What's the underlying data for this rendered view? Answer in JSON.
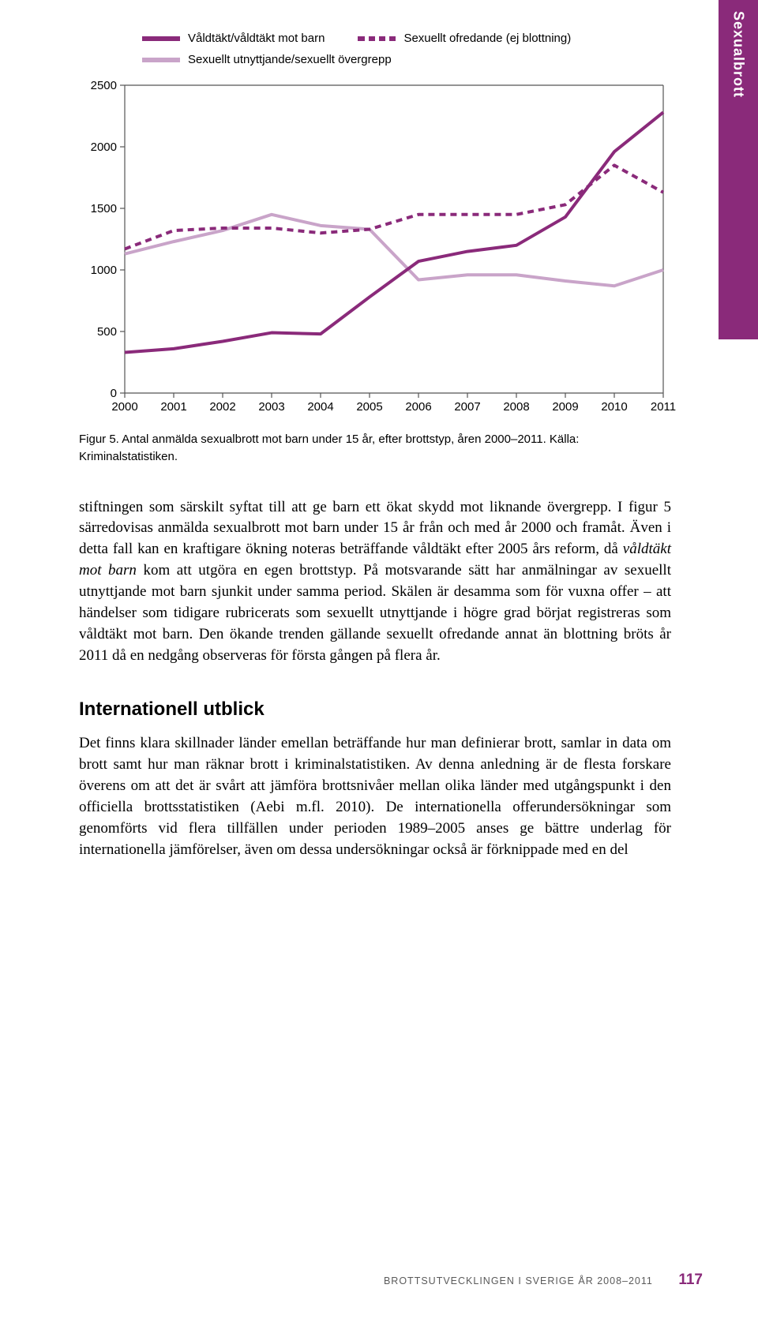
{
  "side_tab": "Sexualbrott",
  "legend": {
    "series1": "Våldtäkt/våldtäkt mot barn",
    "series2": "Sexuellt ofredande (ej blottning)",
    "series3": "Sexuellt utnyttjande/sexuellt övergrepp"
  },
  "chart": {
    "type": "line",
    "years": [
      "2000",
      "2001",
      "2002",
      "2003",
      "2004",
      "2005",
      "2006",
      "2007",
      "2008",
      "2009",
      "2010",
      "2011"
    ],
    "ylim": [
      0,
      2500
    ],
    "ytick_step": 500,
    "yticks": [
      "0",
      "500",
      "1000",
      "1500",
      "2000",
      "2500"
    ],
    "series": {
      "valdtakt": {
        "color": "#8a2a7a",
        "width": 4,
        "dash": "none",
        "values": [
          330,
          360,
          420,
          490,
          480,
          780,
          1070,
          1150,
          1200,
          1430,
          1960,
          2280
        ]
      },
      "ofredande": {
        "color": "#8a2a7a",
        "width": 4,
        "dash": "8,6",
        "values": [
          1170,
          1320,
          1340,
          1340,
          1300,
          1330,
          1450,
          1450,
          1450,
          1530,
          1850,
          1630
        ]
      },
      "utnyttjande": {
        "color": "#c9a4c9",
        "width": 4,
        "dash": "none",
        "values": [
          1130,
          1230,
          1320,
          1450,
          1360,
          1330,
          920,
          960,
          960,
          910,
          870,
          1000
        ]
      }
    },
    "frame_color": "#555555",
    "background": "#ffffff"
  },
  "caption": "Figur 5. Antal anmälda sexualbrott mot barn under 15 år, efter brottstyp, åren 2000–2011. Källa: Kriminalstatistiken.",
  "paragraph1_a": "stiftningen som särskilt syftat till att ge barn ett ökat skydd mot liknande övergrepp. I figur 5 särredovisas anmälda sexualbrott mot barn under 15 år från och med år 2000 och framåt. Även i detta fall kan en kraftigare ökning noteras beträffande våldtäkt efter 2005 års reform, då ",
  "paragraph1_em": "våldtäkt mot barn",
  "paragraph1_b": " kom att utgöra en egen brottstyp. På motsvarande sätt har anmälningar av sexuellt utnyttjande mot barn sjunkit under samma period. Skälen är desamma som för vuxna offer – att händelser som tidigare rubricerats som sexuellt utnyttjande i högre grad börjat registreras som våldtäkt mot barn. Den ökande trenden gällande sexuellt ofredande annat än blottning bröts år 2011 då en nedgång observeras för första gången på flera år.",
  "heading": "Internationell utblick",
  "paragraph2": "Det finns klara skillnader länder emellan beträffande hur man definierar brott, samlar in data om brott samt hur man räknar brott i kriminalstatistiken. Av denna anledning är de flesta forskare överens om att det är svårt att jämföra brottsnivåer mellan olika länder med utgångspunkt i den officiella brottsstatistiken (Aebi m.fl. 2010). De internationella offerundersökningar som genomförts vid flera tillfällen under perioden 1989–2005 anses ge bättre underlag för internationella jämförelser, även om dessa undersökningar också är förknippade med en del",
  "footer_text": "brottsutvecklingen i sverige år 2008–2011",
  "page_number": "117",
  "colors": {
    "accent": "#8a2a7a",
    "light": "#c9a4c9",
    "text": "#000000",
    "footer_text": "#5a5a5a"
  }
}
